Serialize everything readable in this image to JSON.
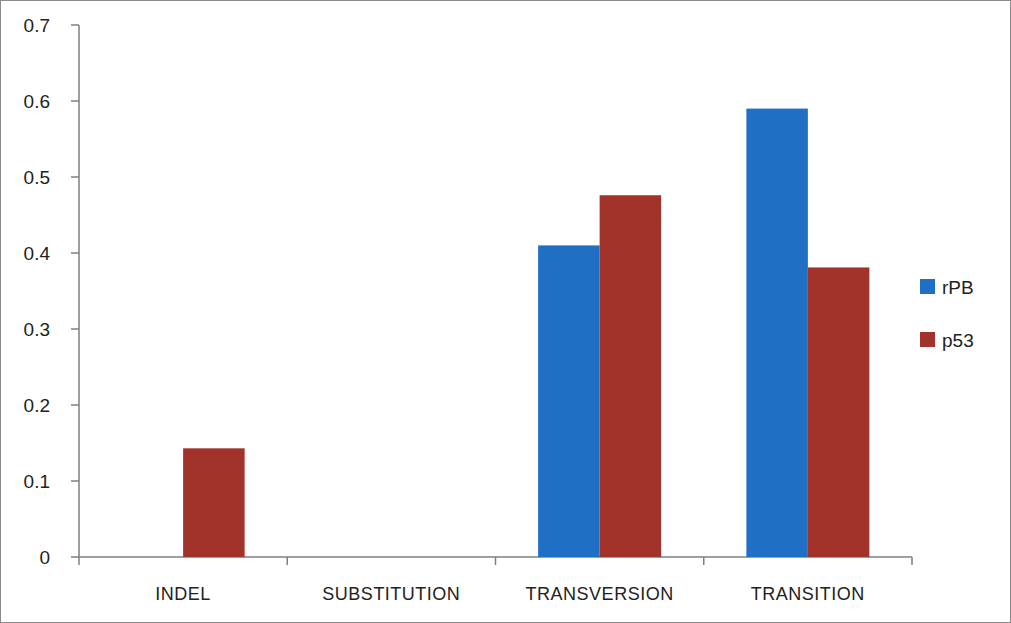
{
  "chart_data": {
    "type": "bar",
    "categories": [
      "INDEL",
      "SUBSTITUTION",
      "TRANSVERSION",
      "TRANSITION"
    ],
    "series": [
      {
        "name": "rPB",
        "color": "#1f6fc5",
        "values": [
          0,
          0,
          0.41,
          0.59
        ]
      },
      {
        "name": "p53",
        "color": "#a1332b",
        "values": [
          0.143,
          0,
          0.476,
          0.381
        ]
      }
    ],
    "ylim": [
      0,
      0.7
    ],
    "yticks": [
      0,
      0.1,
      0.2,
      0.3,
      0.4,
      0.5,
      0.6,
      0.7
    ],
    "grid": false,
    "legend": "right"
  }
}
